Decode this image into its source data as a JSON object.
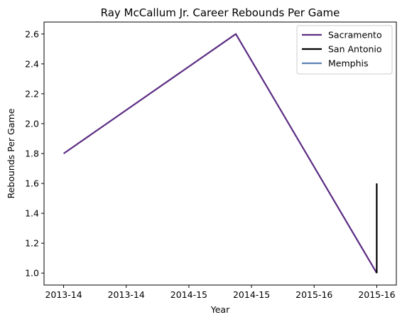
{
  "chart_data": {
    "type": "line",
    "title": "Ray McCallum Jr. Career Rebounds Per Game",
    "xlabel": "Year",
    "ylabel": "Rebounds Per Game",
    "x_tick_labels": [
      "2013-14",
      "2013-14",
      "2014-15",
      "2014-15",
      "2015-16",
      "2015-16"
    ],
    "x_range": [
      -0.125,
      2.125
    ],
    "ylim": [
      0.92,
      2.68
    ],
    "y_ticks": [
      "1.0",
      "1.2",
      "1.4",
      "1.6",
      "1.8",
      "2.0",
      "2.2",
      "2.4",
      "2.6"
    ],
    "legend_position": "top-right",
    "grid": false,
    "series": [
      {
        "name": "Sacramento",
        "color": "#5b2c83",
        "x": [
          0,
          1.1,
          2
        ],
        "y": [
          1.8,
          2.6,
          1.0
        ]
      },
      {
        "name": "San Antonio",
        "color": "#000000",
        "x": [
          2,
          2
        ],
        "y": [
          1.6,
          1.0
        ]
      },
      {
        "name": "Memphis",
        "color": "#5d81b4",
        "x": [
          2
        ],
        "y": [
          1.0
        ]
      }
    ]
  }
}
